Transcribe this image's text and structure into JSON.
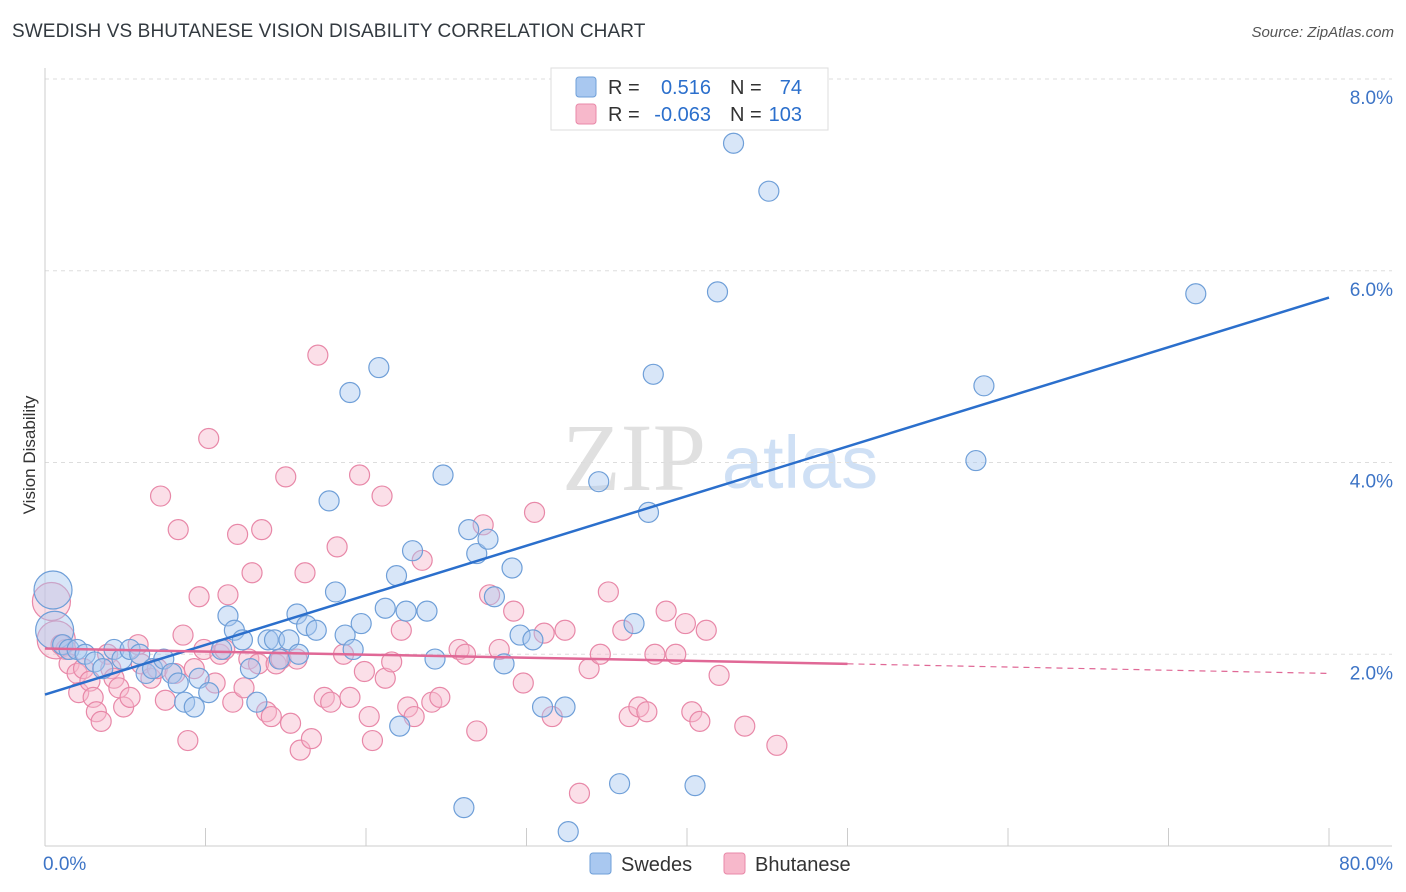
{
  "title": "SWEDISH VS BHUTANESE VISION DISABILITY CORRELATION CHART",
  "source": "Source: ZipAtlas.com",
  "watermark": {
    "zip": "ZIP",
    "atlas": "atlas"
  },
  "colors": {
    "swedes_fill": "#a9c8f0",
    "swedes_stroke": "#6f9fd8",
    "swedes_line": "#2b6fcc",
    "bhutanese_fill": "#f7b8cb",
    "bhutanese_stroke": "#e888a8",
    "bhutanese_line": "#e06896",
    "tick_label": "#3d74c6",
    "grid": "#dddddd"
  },
  "chart_data": {
    "type": "scatter",
    "title": "SWEDISH VS BHUTANESE VISION DISABILITY CORRELATION CHART",
    "xlabel": "",
    "ylabel": "Vision Disability",
    "xlim": [
      0,
      80
    ],
    "ylim": [
      0,
      8.0
    ],
    "x_tick_labels": [
      "0.0%",
      "80.0%"
    ],
    "y_ticks": [
      2.0,
      4.0,
      6.0,
      8.0
    ],
    "y_tick_labels": [
      "2.0%",
      "4.0%",
      "6.0%",
      "8.0%"
    ],
    "grid": true,
    "legend_position": "top-center",
    "bottom_legend": [
      "Swedes",
      "Bhutanese"
    ],
    "stats": [
      {
        "r_label": "R =",
        "r": "0.516",
        "n_label": "N =",
        "n": "74"
      },
      {
        "r_label": "R =",
        "r": "-0.063",
        "n_label": "N =",
        "n": "103"
      }
    ],
    "series": [
      {
        "name": "Swedes",
        "trend": {
          "x": [
            0,
            80
          ],
          "y": [
            1.58,
            5.72
          ]
        },
        "points": [
          [
            0.5,
            2.67
          ],
          [
            0.6,
            2.25
          ],
          [
            1.1,
            2.1
          ],
          [
            1.5,
            2.05
          ],
          [
            2.0,
            2.05
          ],
          [
            2.5,
            2.0
          ],
          [
            3.1,
            1.92
          ],
          [
            3.6,
            1.85
          ],
          [
            4.3,
            2.05
          ],
          [
            4.8,
            1.95
          ],
          [
            5.3,
            2.05
          ],
          [
            5.9,
            2.0
          ],
          [
            6.3,
            1.8
          ],
          [
            6.7,
            1.85
          ],
          [
            7.4,
            1.95
          ],
          [
            7.9,
            1.8
          ],
          [
            8.3,
            1.7
          ],
          [
            8.7,
            1.5
          ],
          [
            9.3,
            1.45
          ],
          [
            9.6,
            1.75
          ],
          [
            10.2,
            1.6
          ],
          [
            11.0,
            2.05
          ],
          [
            11.4,
            2.4
          ],
          [
            11.8,
            2.25
          ],
          [
            12.3,
            2.15
          ],
          [
            12.8,
            1.85
          ],
          [
            13.2,
            1.5
          ],
          [
            13.9,
            2.15
          ],
          [
            14.3,
            2.15
          ],
          [
            14.6,
            1.95
          ],
          [
            15.2,
            2.15
          ],
          [
            15.8,
            2.0
          ],
          [
            15.7,
            2.42
          ],
          [
            16.3,
            2.3
          ],
          [
            16.9,
            2.25
          ],
          [
            17.7,
            3.6
          ],
          [
            18.1,
            2.65
          ],
          [
            18.7,
            2.2
          ],
          [
            19.2,
            2.05
          ],
          [
            19.0,
            4.73
          ],
          [
            19.7,
            2.32
          ],
          [
            20.8,
            4.99
          ],
          [
            21.2,
            2.48
          ],
          [
            21.9,
            2.82
          ],
          [
            22.1,
            1.25
          ],
          [
            22.5,
            2.45
          ],
          [
            22.9,
            3.08
          ],
          [
            23.8,
            2.45
          ],
          [
            24.3,
            1.95
          ],
          [
            24.8,
            3.87
          ],
          [
            26.1,
            0.4
          ],
          [
            26.4,
            3.3
          ],
          [
            26.9,
            3.05
          ],
          [
            27.6,
            3.2
          ],
          [
            28.0,
            2.6
          ],
          [
            28.6,
            1.9
          ],
          [
            29.1,
            2.9
          ],
          [
            29.6,
            2.2
          ],
          [
            30.4,
            2.15
          ],
          [
            31.0,
            1.45
          ],
          [
            32.3,
            7.71
          ],
          [
            32.4,
            1.45
          ],
          [
            32.6,
            0.15
          ],
          [
            34.5,
            3.8
          ],
          [
            35.8,
            0.65
          ],
          [
            36.7,
            2.32
          ],
          [
            37.6,
            3.48
          ],
          [
            37.9,
            4.92
          ],
          [
            40.5,
            0.63
          ],
          [
            41.9,
            5.78
          ],
          [
            42.9,
            7.33
          ],
          [
            45.1,
            6.83
          ],
          [
            58.0,
            4.02
          ],
          [
            58.5,
            4.8
          ],
          [
            71.7,
            5.76
          ]
        ]
      },
      {
        "name": "Bhutanese",
        "trend": {
          "x": [
            0,
            50
          ],
          "y": [
            2.06,
            1.9
          ]
        },
        "trend_dashed": {
          "x": [
            50,
            80
          ],
          "y": [
            1.9,
            1.8
          ]
        },
        "points": [
          [
            0.4,
            2.55
          ],
          [
            0.7,
            2.15
          ],
          [
            1.0,
            2.1
          ],
          [
            1.3,
            2.05
          ],
          [
            1.5,
            1.9
          ],
          [
            2.0,
            1.8
          ],
          [
            2.1,
            1.6
          ],
          [
            2.4,
            1.85
          ],
          [
            2.8,
            1.72
          ],
          [
            3.0,
            1.55
          ],
          [
            3.2,
            1.4
          ],
          [
            3.5,
            1.3
          ],
          [
            3.9,
            2.0
          ],
          [
            4.1,
            1.85
          ],
          [
            4.3,
            1.75
          ],
          [
            4.6,
            1.65
          ],
          [
            4.9,
            1.45
          ],
          [
            5.3,
            1.55
          ],
          [
            5.8,
            2.1
          ],
          [
            6.0,
            1.9
          ],
          [
            6.6,
            1.75
          ],
          [
            7.0,
            1.85
          ],
          [
            7.2,
            3.65
          ],
          [
            7.5,
            1.52
          ],
          [
            8.1,
            1.8
          ],
          [
            8.3,
            3.3
          ],
          [
            8.6,
            2.2
          ],
          [
            8.9,
            1.1
          ],
          [
            9.3,
            1.85
          ],
          [
            9.6,
            2.6
          ],
          [
            9.9,
            2.05
          ],
          [
            10.2,
            4.25
          ],
          [
            10.6,
            1.7
          ],
          [
            10.9,
            2.0
          ],
          [
            11.2,
            2.05
          ],
          [
            11.4,
            2.62
          ],
          [
            11.7,
            1.5
          ],
          [
            12.0,
            3.25
          ],
          [
            12.4,
            1.65
          ],
          [
            12.7,
            1.95
          ],
          [
            12.9,
            2.85
          ],
          [
            13.3,
            1.9
          ],
          [
            13.5,
            3.3
          ],
          [
            13.8,
            1.4
          ],
          [
            14.1,
            1.35
          ],
          [
            14.4,
            1.9
          ],
          [
            14.7,
            1.95
          ],
          [
            15.0,
            3.85
          ],
          [
            15.3,
            1.28
          ],
          [
            15.7,
            1.95
          ],
          [
            15.9,
            1.0
          ],
          [
            16.2,
            2.85
          ],
          [
            16.6,
            1.12
          ],
          [
            17.0,
            5.12
          ],
          [
            17.4,
            1.55
          ],
          [
            17.8,
            1.5
          ],
          [
            18.2,
            3.12
          ],
          [
            18.6,
            2.0
          ],
          [
            19.0,
            1.55
          ],
          [
            19.6,
            3.87
          ],
          [
            19.9,
            1.82
          ],
          [
            20.2,
            1.35
          ],
          [
            20.4,
            1.1
          ],
          [
            21.0,
            3.65
          ],
          [
            21.2,
            1.75
          ],
          [
            21.6,
            1.92
          ],
          [
            22.2,
            2.25
          ],
          [
            22.6,
            1.45
          ],
          [
            23.0,
            1.35
          ],
          [
            23.5,
            2.98
          ],
          [
            24.1,
            1.5
          ],
          [
            24.6,
            1.55
          ],
          [
            25.8,
            2.05
          ],
          [
            26.2,
            2.0
          ],
          [
            26.9,
            1.2
          ],
          [
            27.3,
            3.35
          ],
          [
            27.7,
            2.62
          ],
          [
            28.3,
            2.05
          ],
          [
            29.2,
            2.45
          ],
          [
            29.8,
            1.7
          ],
          [
            30.5,
            3.48
          ],
          [
            31.1,
            2.22
          ],
          [
            31.6,
            1.35
          ],
          [
            32.4,
            2.25
          ],
          [
            33.3,
            0.55
          ],
          [
            33.9,
            1.85
          ],
          [
            34.6,
            2.0
          ],
          [
            35.1,
            2.65
          ],
          [
            36.0,
            2.25
          ],
          [
            36.4,
            1.35
          ],
          [
            37.0,
            1.45
          ],
          [
            37.5,
            1.4
          ],
          [
            38.0,
            2.0
          ],
          [
            38.7,
            2.45
          ],
          [
            39.3,
            2.0
          ],
          [
            39.9,
            2.32
          ],
          [
            40.3,
            1.4
          ],
          [
            40.8,
            1.3
          ],
          [
            41.2,
            2.25
          ],
          [
            42.0,
            1.78
          ],
          [
            43.6,
            1.25
          ],
          [
            45.6,
            1.05
          ]
        ]
      }
    ]
  }
}
